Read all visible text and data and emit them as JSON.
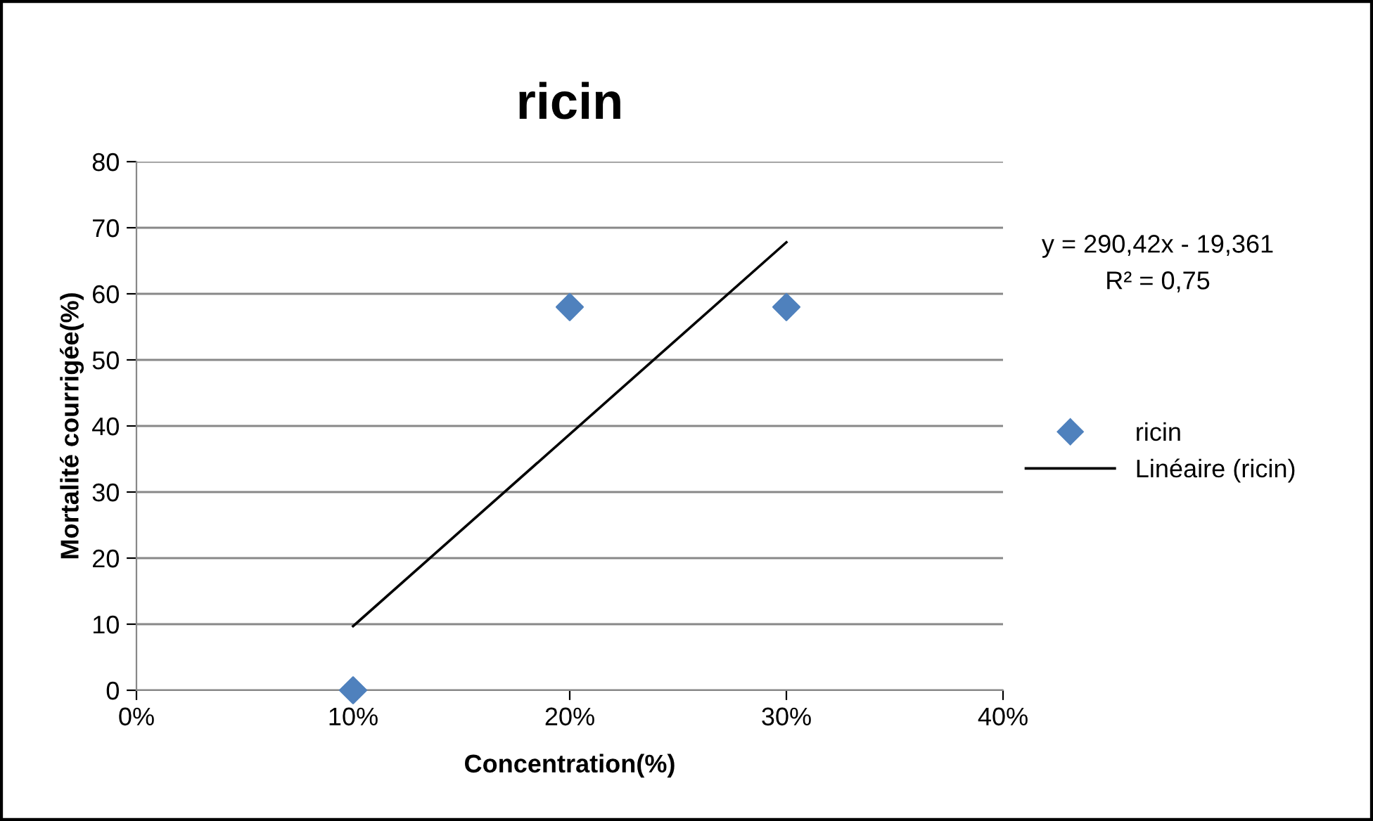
{
  "chart_data": {
    "type": "scatter",
    "title": "ricin",
    "xlabel": "Concentration(%)",
    "ylabel": "Mortalité courrigée(%)",
    "series": [
      {
        "name": "ricin",
        "color": "#4f81bd",
        "marker": "diamond",
        "x": [
          0.1,
          0.2,
          0.3
        ],
        "values": [
          0,
          58,
          58
        ]
      },
      {
        "name": "Linéaire (ricin)",
        "type": "line",
        "color": "#000000",
        "marker": "none",
        "line_style": "solid",
        "x": [
          0.1,
          0.3
        ],
        "values": [
          9.7,
          67.8
        ]
      }
    ],
    "xlim": [
      0,
      0.4
    ],
    "xticks": [
      {
        "value": 0,
        "label": "0%"
      },
      {
        "value": 0.1,
        "label": "10%"
      },
      {
        "value": 0.2,
        "label": "20%"
      },
      {
        "value": 0.3,
        "label": "30%"
      },
      {
        "value": 0.4,
        "label": "40%"
      }
    ],
    "ylim": [
      0,
      80
    ],
    "yticks": [
      0,
      10,
      20,
      30,
      40,
      50,
      60,
      70,
      80
    ],
    "grid": "y",
    "legend": "right",
    "annotations": [
      "y = 290,42x - 19,361",
      "R² = 0,75"
    ]
  }
}
